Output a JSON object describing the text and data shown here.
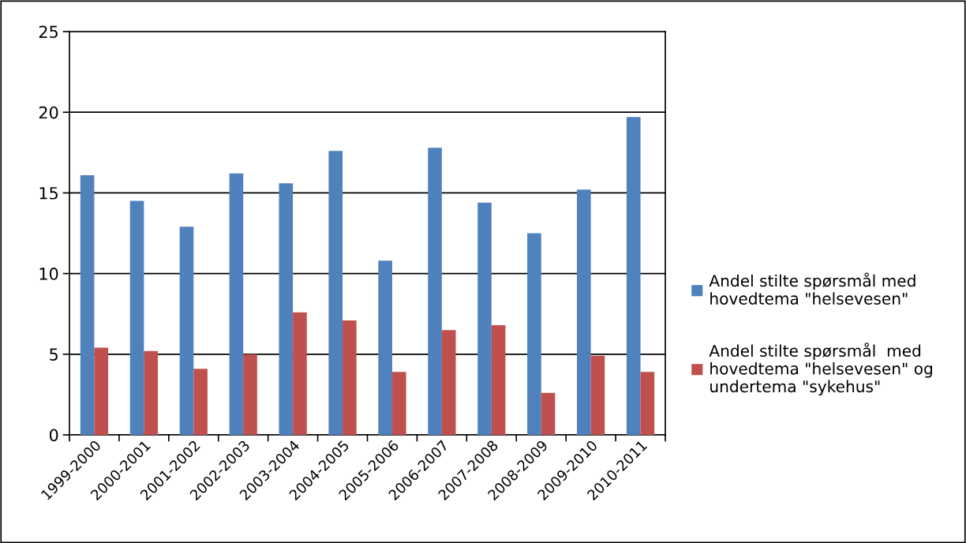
{
  "chart_data": {
    "type": "bar",
    "categories": [
      "1999-2000",
      "2000-2001",
      "2001-2002",
      "2002-2003",
      "2003-2004",
      "2004-2005",
      "2005-2006",
      "2006-2007",
      "2007-2008",
      "2008-2009",
      "2009-2010",
      "2010-2011"
    ],
    "series": [
      {
        "name": "Andel stilte spørsmål med\nhovedtema \"helsevesen\"",
        "color": "#4f81bd",
        "values": [
          16.1,
          14.5,
          12.9,
          16.2,
          15.6,
          17.6,
          10.8,
          17.8,
          14.4,
          12.5,
          15.2,
          19.7
        ]
      },
      {
        "name": "Andel stilte spørsmål  med\nhovedtema \"helsevesen\" og\nundertema \"sykehus\"",
        "color": "#c0504d",
        "values": [
          5.4,
          5.2,
          4.1,
          5.0,
          7.6,
          7.1,
          3.9,
          6.5,
          6.8,
          2.6,
          4.9,
          3.9
        ]
      }
    ],
    "ylim": [
      0,
      25
    ],
    "yticks": [
      0,
      5,
      10,
      15,
      20,
      25
    ],
    "grid": "y",
    "legend": "right"
  }
}
